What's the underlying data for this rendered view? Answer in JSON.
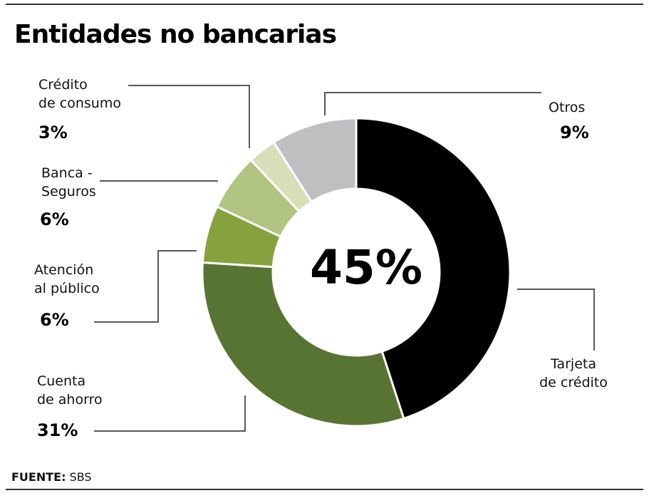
{
  "title": "Entidades no bancarias",
  "center_label": "45%",
  "source": {
    "label": "FUENTE:",
    "value": "SBS"
  },
  "colors": {
    "Tarjeta de crédito": "#000000",
    "Cuenta de ahorro": "#587432",
    "Atención al público": "#86a23e",
    "Banca - Seguros": "#b1c482",
    "Crédito de consumo": "#d7dfb8",
    "Otros": "#bebfc1"
  },
  "chart_data": {
    "type": "pie",
    "donut": true,
    "title": "Entidades no bancarias",
    "slices": [
      {
        "label_lines": [
          "Tarjeta",
          "de crédito"
        ],
        "value": 45,
        "value_label": ""
      },
      {
        "label_lines": [
          "Cuenta",
          "de ahorro"
        ],
        "value": 31,
        "value_label": "31%"
      },
      {
        "label_lines": [
          "Atención",
          "al público"
        ],
        "value": 6,
        "value_label": "6%"
      },
      {
        "label_lines": [
          "Banca -",
          "Seguros"
        ],
        "value": 6,
        "value_label": "6%"
      },
      {
        "label_lines": [
          "Crédito",
          "de consumo"
        ],
        "value": 3,
        "value_label": "3%"
      },
      {
        "label_lines": [
          "Otros"
        ],
        "value": 9,
        "value_label": "9%"
      }
    ]
  }
}
